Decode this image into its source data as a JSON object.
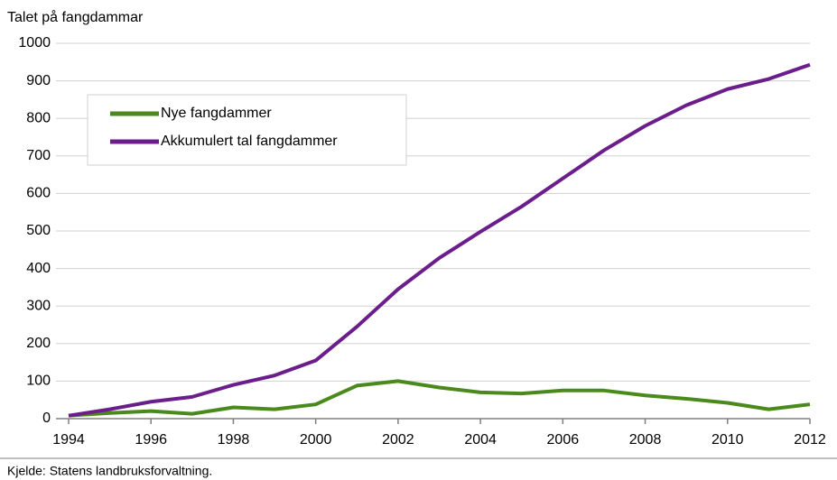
{
  "chart_data": {
    "type": "line",
    "y_label": "Talet på fangdammar",
    "x": [
      1994,
      1995,
      1996,
      1997,
      1998,
      1999,
      2000,
      2001,
      2002,
      2003,
      2004,
      2005,
      2006,
      2007,
      2008,
      2009,
      2010,
      2011,
      2012
    ],
    "series": [
      {
        "name": "Nye fangdammer",
        "color": "#4a8a1c",
        "values": [
          8,
          15,
          20,
          13,
          30,
          25,
          38,
          88,
          100,
          83,
          70,
          67,
          75,
          75,
          62,
          53,
          42,
          25,
          38
        ]
      },
      {
        "name": "Akkumulert tal fangdammer",
        "color": "#6b1d8c",
        "values": [
          8,
          25,
          45,
          58,
          90,
          115,
          155,
          245,
          345,
          428,
          498,
          565,
          640,
          715,
          780,
          835,
          878,
          905,
          943
        ]
      }
    ],
    "xlim": [
      1994,
      2012
    ],
    "xticks": [
      1994,
      1996,
      1998,
      2000,
      2002,
      2004,
      2006,
      2008,
      2010,
      2012
    ],
    "ylim": [
      0,
      1000
    ],
    "yticks": [
      0,
      100,
      200,
      300,
      400,
      500,
      600,
      700,
      800,
      900,
      1000
    ],
    "grid": true
  },
  "source": "Kjelde: Statens landbruksforvaltning."
}
